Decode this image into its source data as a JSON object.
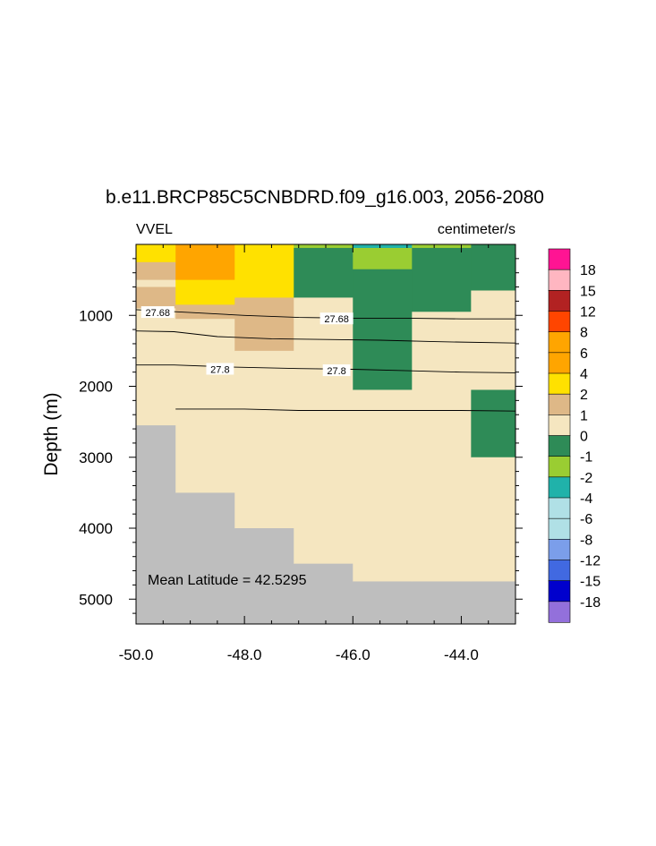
{
  "chart_data": {
    "type": "heatmap",
    "title": "b.e11.BRCP85C5CNBDRD.f09_g16.003, 2056-2080",
    "left_label": "VVEL",
    "right_label": "centimeter/s",
    "ylabel": "Depth (m)",
    "xlabel": "",
    "xlim": [
      -50.0,
      -43.0
    ],
    "ylim": [
      0,
      5350
    ],
    "y_reversed": true,
    "x_ticks": [
      -50.0,
      -48.0,
      -46.0,
      -44.0
    ],
    "x_tick_labels": [
      "-50.0",
      "-48.0",
      "-46.0",
      "-44.0"
    ],
    "y_ticks": [
      1000,
      2000,
      3000,
      4000,
      5000
    ],
    "y_tick_labels": [
      "1000",
      "2000",
      "3000",
      "4000",
      "5000"
    ],
    "annotation": "Mean Latitude = 42.5295",
    "missing_color": "#bebebe",
    "colorbar": {
      "labels": [
        "18",
        "15",
        "12",
        "8",
        "6",
        "4",
        "2",
        "1",
        "0",
        "-1",
        "-2",
        "-4",
        "-6",
        "-8",
        "-12",
        "-15",
        "-18"
      ],
      "colors": [
        "#ff1493",
        "#ffb6c1",
        "#b22222",
        "#ff4500",
        "#ffa500",
        "#ffa500",
        "#ffe100",
        "#deb887",
        "#f5e6c0",
        "#2e8b57",
        "#9acd32",
        "#20b2aa",
        "#b0e0e6",
        "#b0e0e6",
        "#7b9eea",
        "#4169e1",
        "#0000cd",
        "#9370db"
      ]
    },
    "cells": [
      {
        "x0": -50.0,
        "x1": -49.27,
        "y0": 0,
        "y1": 250,
        "color": "#ffe100"
      },
      {
        "x0": -50.0,
        "x1": -49.27,
        "y0": 250,
        "y1": 500,
        "color": "#deb887"
      },
      {
        "x0": -50.0,
        "x1": -49.27,
        "y0": 500,
        "y1": 600,
        "color": "#f5e6c0"
      },
      {
        "x0": -50.0,
        "x1": -49.27,
        "y0": 600,
        "y1": 900,
        "color": "#deb887"
      },
      {
        "x0": -50.0,
        "x1": -49.27,
        "y0": 900,
        "y1": 2550,
        "color": "#f5e6c0"
      },
      {
        "x0": -50.0,
        "x1": -49.27,
        "y0": 2550,
        "y1": 5350,
        "color": "#bebebe"
      },
      {
        "x0": -49.27,
        "x1": -48.18,
        "y0": 0,
        "y1": 500,
        "color": "#ffa500"
      },
      {
        "x0": -49.27,
        "x1": -48.18,
        "y0": 500,
        "y1": 850,
        "color": "#ffe100"
      },
      {
        "x0": -49.27,
        "x1": -48.18,
        "y0": 850,
        "y1": 1050,
        "color": "#deb887"
      },
      {
        "x0": -49.27,
        "x1": -48.18,
        "y0": 1050,
        "y1": 3500,
        "color": "#f5e6c0"
      },
      {
        "x0": -49.27,
        "x1": -48.18,
        "y0": 3500,
        "y1": 5350,
        "color": "#bebebe"
      },
      {
        "x0": -48.18,
        "x1": -47.09,
        "y0": 0,
        "y1": 750,
        "color": "#ffe100"
      },
      {
        "x0": -48.18,
        "x1": -47.09,
        "y0": 750,
        "y1": 1500,
        "color": "#deb887"
      },
      {
        "x0": -48.18,
        "x1": -47.09,
        "y0": 1500,
        "y1": 4000,
        "color": "#f5e6c0"
      },
      {
        "x0": -48.18,
        "x1": -47.09,
        "y0": 4000,
        "y1": 5350,
        "color": "#bebebe"
      },
      {
        "x0": -47.09,
        "x1": -46.0,
        "y0": 0,
        "y1": 50,
        "color": "#9acd32"
      },
      {
        "x0": -47.09,
        "x1": -46.0,
        "y0": 50,
        "y1": 750,
        "color": "#2e8b57"
      },
      {
        "x0": -47.09,
        "x1": -46.0,
        "y0": 750,
        "y1": 4500,
        "color": "#f5e6c0"
      },
      {
        "x0": -47.09,
        "x1": -46.0,
        "y0": 4500,
        "y1": 5350,
        "color": "#bebebe"
      },
      {
        "x0": -46.0,
        "x1": -44.91,
        "y0": 0,
        "y1": 50,
        "color": "#20b2aa"
      },
      {
        "x0": -46.0,
        "x1": -44.91,
        "y0": 50,
        "y1": 350,
        "color": "#9acd32"
      },
      {
        "x0": -46.0,
        "x1": -44.91,
        "y0": 350,
        "y1": 2050,
        "color": "#2e8b57"
      },
      {
        "x0": -46.0,
        "x1": -44.91,
        "y0": 2050,
        "y1": 4750,
        "color": "#f5e6c0"
      },
      {
        "x0": -46.0,
        "x1": -44.91,
        "y0": 4750,
        "y1": 5350,
        "color": "#bebebe"
      },
      {
        "x0": -44.91,
        "x1": -43.82,
        "y0": 0,
        "y1": 50,
        "color": "#9acd32"
      },
      {
        "x0": -44.91,
        "x1": -43.82,
        "y0": 50,
        "y1": 950,
        "color": "#2e8b57"
      },
      {
        "x0": -44.91,
        "x1": -43.82,
        "y0": 950,
        "y1": 4750,
        "color": "#f5e6c0"
      },
      {
        "x0": -44.91,
        "x1": -43.82,
        "y0": 4750,
        "y1": 5350,
        "color": "#bebebe"
      },
      {
        "x0": -43.82,
        "x1": -43.0,
        "y0": 0,
        "y1": 650,
        "color": "#2e8b57"
      },
      {
        "x0": -43.82,
        "x1": -43.0,
        "y0": 650,
        "y1": 2050,
        "color": "#f5e6c0"
      },
      {
        "x0": -43.82,
        "x1": -43.0,
        "y0": 2050,
        "y1": 3000,
        "color": "#2e8b57"
      },
      {
        "x0": -43.82,
        "x1": -43.0,
        "y0": 3000,
        "y1": 4750,
        "color": "#f5e6c0"
      },
      {
        "x0": -43.82,
        "x1": -43.0,
        "y0": 4750,
        "y1": 5350,
        "color": "#bebebe"
      }
    ],
    "contours": [
      {
        "points": [
          [
            -50.0,
            920
          ],
          [
            -49.0,
            960
          ],
          [
            -48.0,
            1000
          ],
          [
            -47.0,
            1030
          ],
          [
            -46.0,
            1040
          ],
          [
            -45.0,
            1040
          ],
          [
            -44.0,
            1050
          ],
          [
            -43.0,
            1050
          ]
        ]
      },
      {
        "points": [
          [
            -50.0,
            1220
          ],
          [
            -49.3,
            1230
          ],
          [
            -48.5,
            1300
          ],
          [
            -47.5,
            1330
          ],
          [
            -46.5,
            1340
          ],
          [
            -45.5,
            1350
          ],
          [
            -44.5,
            1370
          ],
          [
            -43.0,
            1390
          ]
        ]
      },
      {
        "points": [
          [
            -50.0,
            1700
          ],
          [
            -49.3,
            1700
          ],
          [
            -48.2,
            1730
          ],
          [
            -47.0,
            1750
          ],
          [
            -46.0,
            1760
          ],
          [
            -45.0,
            1780
          ],
          [
            -44.0,
            1800
          ],
          [
            -43.0,
            1810
          ]
        ]
      },
      {
        "points": [
          [
            -49.27,
            2320
          ],
          [
            -48.0,
            2320
          ],
          [
            -47.0,
            2340
          ],
          [
            -46.0,
            2340
          ],
          [
            -45.0,
            2340
          ],
          [
            -44.0,
            2340
          ],
          [
            -43.0,
            2350
          ]
        ]
      }
    ],
    "contour_labels": [
      {
        "text": "27.68",
        "x": -49.6,
        "y": 960
      },
      {
        "text": "27.68",
        "x": -46.3,
        "y": 1050
      },
      {
        "text": "27.8",
        "x": -48.45,
        "y": 1760
      },
      {
        "text": "27.8",
        "x": -46.3,
        "y": 1780
      }
    ]
  }
}
